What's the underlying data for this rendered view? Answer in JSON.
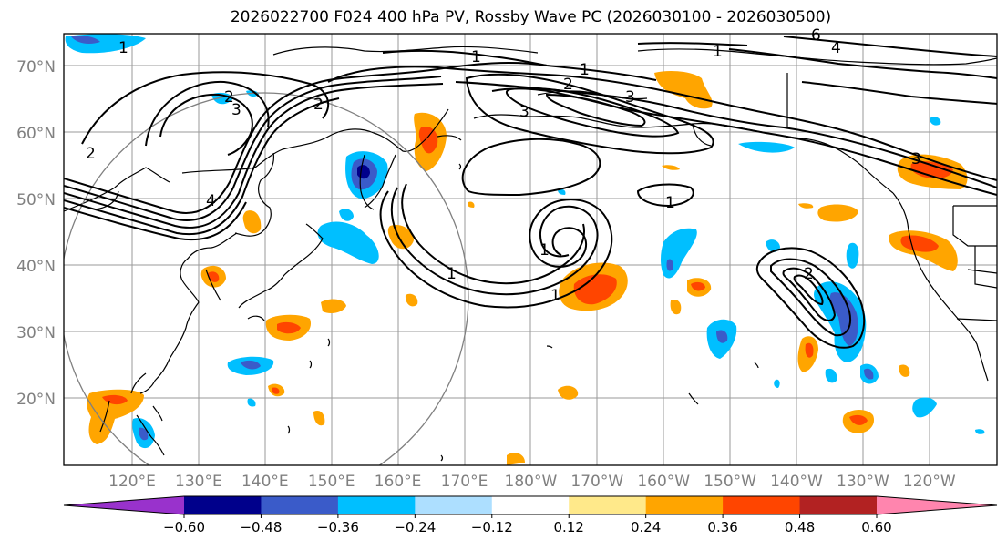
{
  "title": "2026022700 F024 400 hPa PV, Rossby Wave PC (2026030100 - 2026030500)",
  "lat_labels": [
    "70°N",
    "60°N",
    "50°N",
    "40°N",
    "30°N",
    "20°N"
  ],
  "lon_labels": [
    "120°E",
    "130°E",
    "140°E",
    "150°E",
    "160°E",
    "170°E",
    "180°W",
    "170°W",
    "160°W",
    "150°W",
    "140°W",
    "130°W",
    "120°W"
  ],
  "colorbar": {
    "colors": [
      "#9932CC",
      "#00008B",
      "#3A5BC9",
      "#00BFFF",
      "#ADDFFF",
      "#FFFFFF",
      "#FFE98A",
      "#FFA500",
      "#FF4500",
      "#B22222",
      "#FF85AE"
    ],
    "tick_labels": [
      "−0.60",
      "−0.48",
      "−0.36",
      "−0.24",
      "−0.12",
      "0.12",
      "0.24",
      "0.36",
      "0.48",
      "0.60"
    ]
  },
  "contour_labels": [
    "1",
    "1",
    "1",
    "1",
    "1",
    "1",
    "1",
    "1",
    "2",
    "2",
    "2",
    "2",
    "2",
    "3",
    "3",
    "3",
    "3",
    "4",
    "4",
    "6"
  ],
  "colors": {
    "grid": "#9a9a9a",
    "tick_text": "#808080",
    "contour": "#000000",
    "coast": "#000000",
    "circle": "#808080"
  }
}
